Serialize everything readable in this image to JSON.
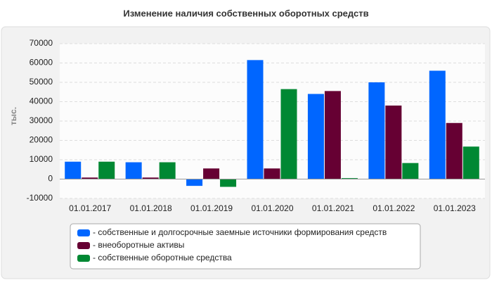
{
  "chart_data": {
    "type": "bar",
    "title": "Изменение наличия собственных оборотных средств",
    "y_label": "тыс.",
    "categories": [
      "01.01.2017",
      "01.01.2018",
      "01.01.2019",
      "01.01.2020",
      "01.01.2021",
      "01.01.2022",
      "01.01.2023"
    ],
    "series": [
      {
        "name": "- собственные и долгосрочные заемные источники формирования средств",
        "color": "#0066ff",
        "values": [
          9000,
          8700,
          -3500,
          61500,
          44000,
          50000,
          56000
        ]
      },
      {
        "name": "- внеоборотные активы",
        "color": "#660033",
        "values": [
          800,
          800,
          5500,
          5500,
          45500,
          38000,
          29000
        ]
      },
      {
        "name": "- собственные оборотные средства",
        "color": "#008833",
        "values": [
          9000,
          8700,
          -4000,
          46500,
          500,
          8300,
          16800
        ]
      }
    ],
    "ylim": [
      -10000,
      70000
    ],
    "yticks": [
      -10000,
      0,
      10000,
      20000,
      30000,
      40000,
      50000,
      60000,
      70000
    ],
    "grid": true
  }
}
